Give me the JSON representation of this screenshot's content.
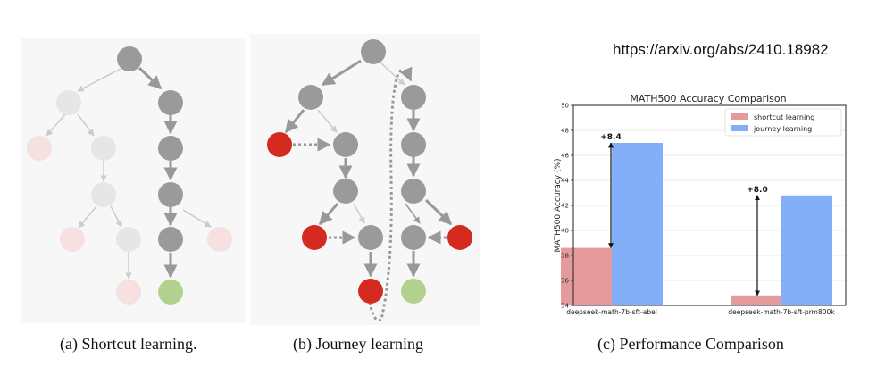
{
  "url": "https://arxiv.org/abs/2410.18982",
  "captions": {
    "a": "(a) Shortcut learning.",
    "b": "(b) Journey learning",
    "c": "(c) Performance Comparison"
  },
  "colors": {
    "node_gray": "#9a9a9a",
    "node_faded_gray": "#e6e6e6",
    "node_red": "#d42a20",
    "node_faded_red": "#f6e0e0",
    "node_green": "#b3d18e",
    "shortcut_learning": "#e59a9c",
    "journey_learning": "#82aff8"
  },
  "chart_data": {
    "type": "bar",
    "title": "MATH500 Accuracy Comparison",
    "xlabel": "",
    "ylabel": "MATH500 Accuracy (%)",
    "ylim": [
      34,
      50
    ],
    "yticks": [
      "34",
      "36",
      "38",
      "40",
      "42",
      "44",
      "46",
      "48",
      "50"
    ],
    "categories": [
      "deepseek-math-7b-sft-abel",
      "deepseek-math-7b-sft-prm800k"
    ],
    "series": [
      {
        "name": "shortcut learning",
        "values": [
          38.6,
          34.8
        ]
      },
      {
        "name": "journey learning",
        "values": [
          47.0,
          42.8
        ]
      }
    ],
    "annotations": [
      "+8.4",
      "+8.0"
    ],
    "legend_position": "top-right",
    "grid": true
  }
}
